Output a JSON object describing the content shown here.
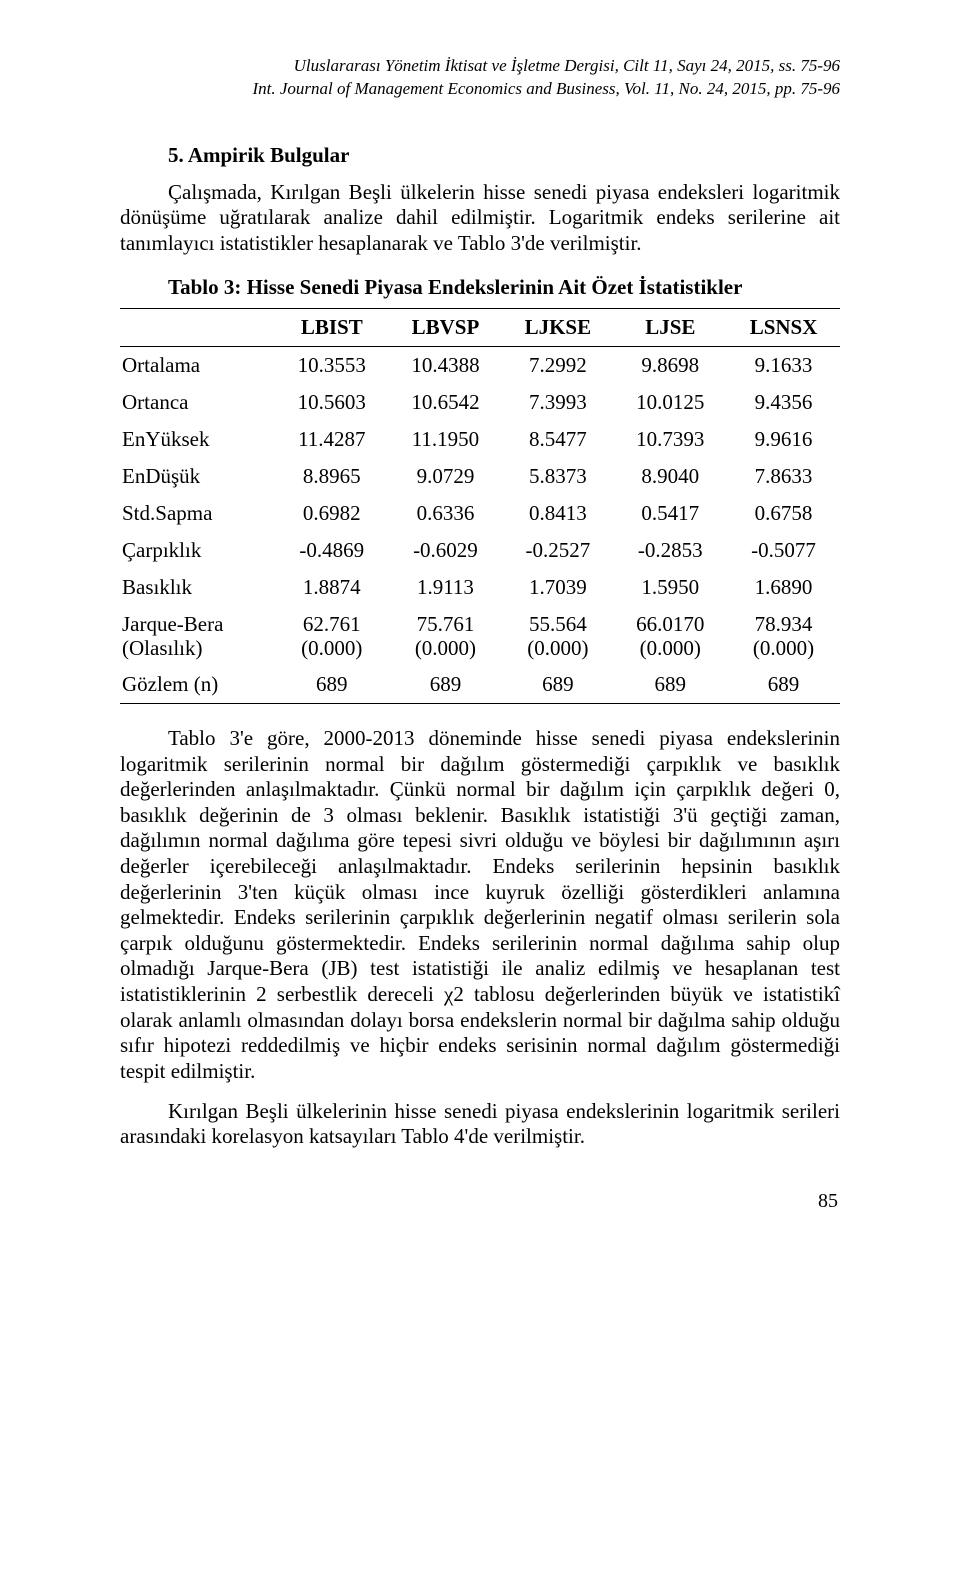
{
  "header": {
    "line1": "Uluslararası Yönetim İktisat ve İşletme Dergisi, Cilt 11, Sayı 24, 2015, ss. 75-96",
    "line2": "Int. Journal of Management Economics and Business, Vol. 11, No. 24, 2015, pp. 75-96"
  },
  "section": {
    "title": "5. Ampirik Bulgular",
    "p1": "Çalışmada, Kırılgan Beşli ülkelerin hisse senedi piyasa endeksleri logaritmik dönüşüme uğratılarak analize dahil edilmiştir. Logaritmik endeks serilerine ait tanımlayıcı istatistikler hesaplanarak ve Tablo 3'de verilmiştir.",
    "tableTitle": "Tablo 3: Hisse Senedi Piyasa Endekslerinin Ait Özet İstatistikler"
  },
  "table": {
    "columns": [
      "",
      "LBIST",
      "LBVSP",
      "LJKSE",
      "LJSE",
      "LSNSX"
    ],
    "rows": [
      {
        "label": "Ortalama",
        "v": [
          "10.3553",
          "10.4388",
          "7.2992",
          "9.8698",
          "9.1633"
        ]
      },
      {
        "label": "Ortanca",
        "v": [
          "10.5603",
          "10.6542",
          "7.3993",
          "10.0125",
          "9.4356"
        ]
      },
      {
        "label": "EnYüksek",
        "v": [
          "11.4287",
          "11.1950",
          "8.5477",
          "10.7393",
          "9.9616"
        ]
      },
      {
        "label": "EnDüşük",
        "v": [
          "8.8965",
          "9.0729",
          "5.8373",
          "8.9040",
          "7.8633"
        ]
      },
      {
        "label": "Std.Sapma",
        "v": [
          "0.6982",
          "0.6336",
          "0.8413",
          "0.5417",
          "0.6758"
        ]
      },
      {
        "label": "Çarpıklık",
        "v": [
          "-0.4869",
          "-0.6029",
          "-0.2527",
          "-0.2853",
          "-0.5077"
        ]
      },
      {
        "label": "Basıklık",
        "v": [
          "1.8874",
          "1.9113",
          "1.7039",
          "1.5950",
          "1.6890"
        ]
      }
    ],
    "jbRow": {
      "label1": "Jarque-Bera",
      "label2": "(Olasılık)",
      "v": [
        {
          "a": "62.761",
          "b": "(0.000)"
        },
        {
          "a": "75.761",
          "b": "(0.000)"
        },
        {
          "a": "55.564",
          "b": "(0.000)"
        },
        {
          "a": "66.0170",
          "b": "(0.000)"
        },
        {
          "a": "78.934",
          "b": "(0.000)"
        }
      ]
    },
    "obsRow": {
      "label": "Gözlem (n)",
      "v": [
        "689",
        "689",
        "689",
        "689",
        "689"
      ]
    }
  },
  "paragraphs": {
    "p2": "Tablo 3'e göre, 2000-2013 döneminde hisse senedi piyasa endekslerinin logaritmik serilerinin normal bir dağılım göstermediği çarpıklık ve basıklık değerlerinden anlaşılmaktadır. Çünkü normal bir dağılım için çarpıklık değeri 0, basıklık değerinin de 3 olması beklenir. Basıklık istatistiği 3'ü geçtiği zaman, dağılımın normal dağılıma göre tepesi sivri olduğu ve böylesi bir dağılımının aşırı değerler içerebileceği anlaşılmaktadır. Endeks serilerinin hepsinin basıklık değerlerinin 3'ten küçük olması ince kuyruk özelliği gösterdikleri anlamına gelmektedir. Endeks serilerinin çarpıklık değerlerinin negatif olması serilerin sola çarpık olduğunu göstermektedir. Endeks serilerinin normal dağılıma sahip olup olmadığı Jarque-Bera (JB) test istatistiği ile analiz edilmiş ve hesaplanan test istatistiklerinin 2 serbestlik dereceli χ2 tablosu değerlerinden büyük ve istatistikî olarak anlamlı olmasından dolayı borsa endekslerin normal bir dağılma sahip olduğu sıfır hipotezi reddedilmiş ve hiçbir endeks serisinin normal dağılım göstermediği tespit edilmiştir.",
    "p3": "Kırılgan Beşli ülkelerinin hisse senedi piyasa endekslerinin logaritmik serileri arasındaki korelasyon katsayıları Tablo 4'de verilmiştir."
  },
  "pageNumber": "85"
}
